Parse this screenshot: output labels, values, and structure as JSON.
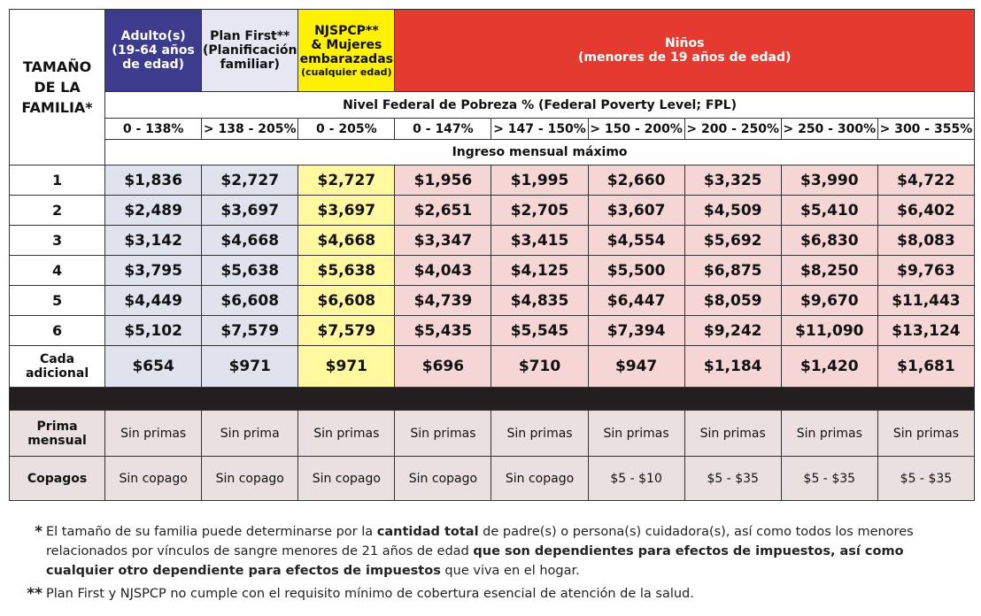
{
  "header": {
    "family_size": [
      "TAMAÑO",
      "DE LA",
      "FAMILIA*"
    ],
    "programs": [
      {
        "name": "Adulto(s)",
        "note": "(19-64 años de edad)"
      },
      {
        "name": "Plan First**",
        "note": "(Planificación familiar)"
      },
      {
        "name": "NJSPCP**",
        "note": "& Mujeres embarazadas",
        "subnote": "(cualquier edad)"
      },
      {
        "name": "Niños",
        "note": "(menores de 19 años de edad)"
      }
    ],
    "fpl_label": "Nivel Federal de Pobreza % (Federal Poverty Level; FPL)",
    "ranges": [
      "0 - 138%",
      "> 138 - 205%",
      "0 - 205%",
      "0 - 147%",
      "> 147 - 150%",
      "> 150 - 200%",
      "> 200 - 250%",
      "> 250 - 300%",
      "> 300 - 355%"
    ],
    "income_label": "Ingreso mensual máximo"
  },
  "table": {
    "rows": [
      {
        "size": "1",
        "values": [
          "$1,836",
          "$2,727",
          "$2,727",
          "$1,956",
          "$1,995",
          "$2,660",
          "$3,325",
          "$3,990",
          "$4,722"
        ]
      },
      {
        "size": "2",
        "values": [
          "$2,489",
          "$3,697",
          "$3,697",
          "$2,651",
          "$2,705",
          "$3,607",
          "$4,509",
          "$5,410",
          "$6,402"
        ]
      },
      {
        "size": "3",
        "values": [
          "$3,142",
          "$4,668",
          "$4,668",
          "$3,347",
          "$3,415",
          "$4,554",
          "$5,692",
          "$6,830",
          "$8,083"
        ]
      },
      {
        "size": "4",
        "values": [
          "$3,795",
          "$5,638",
          "$5,638",
          "$4,043",
          "$4,125",
          "$5,500",
          "$6,875",
          "$8,250",
          "$9,763"
        ]
      },
      {
        "size": "5",
        "values": [
          "$4,449",
          "$6,608",
          "$6,608",
          "$4,739",
          "$4,835",
          "$6,447",
          "$8,059",
          "$9,670",
          "$11,443"
        ]
      },
      {
        "size": "6",
        "values": [
          "$5,102",
          "$7,579",
          "$7,579",
          "$5,435",
          "$5,545",
          "$7,394",
          "$9,242",
          "$11,090",
          "$13,124"
        ]
      },
      {
        "size": "Cada adicional",
        "values": [
          "$654",
          "$971",
          "$971",
          "$696",
          "$710",
          "$947",
          "$1,184",
          "$1,420",
          "$1,681"
        ]
      }
    ],
    "cost_rows": [
      {
        "label": "Prima mensual",
        "values": [
          "Sin primas",
          "Sin prima",
          "Sin primas",
          "Sin primas",
          "Sin primas",
          "Sin primas",
          "Sin primas",
          "Sin primas",
          "Sin primas"
        ]
      },
      {
        "label": "Copagos",
        "values": [
          "Sin copago",
          "Sin copago",
          "Sin copago",
          "Sin copago",
          "Sin copago",
          "$5 - $10",
          "$5 - $35",
          "$5 - $35",
          "$5 - $35"
        ]
      }
    ]
  },
  "footnotes": [
    {
      "mark": "*",
      "parts": [
        "El tamaño de su familia puede determinarse por la ",
        "cantidad total",
        " de padre(s) o persona(s) cuidadora(s), así como todos los menores relacionados por vínculos de sangre menores de 21 años de edad ",
        "que son dependientes para efectos de impuestos, así como cualquier otro dependiente para efectos de impuestos",
        " que viva en el hogar."
      ]
    },
    {
      "mark": "**",
      "parts": [
        "Plan First y NJSPCP no cumple con el requisito mínimo de cobertura esencial de atención de la salud."
      ]
    }
  ]
}
